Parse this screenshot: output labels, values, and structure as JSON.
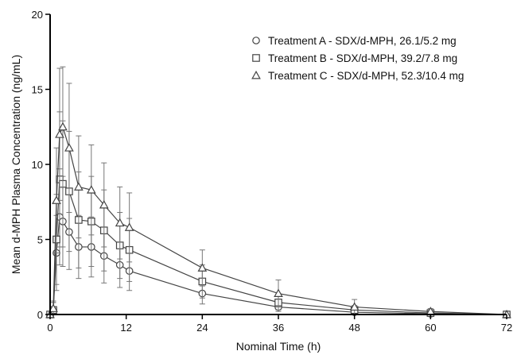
{
  "chart_data": {
    "type": "line",
    "xlabel": "Nominal Time (h)",
    "ylabel": "Mean d-MPH Plasma Concentration (ng/mL)",
    "xlim": [
      0,
      72
    ],
    "ylim": [
      0,
      20
    ],
    "x_ticks": [
      "0",
      "12",
      "24",
      "36",
      "48",
      "60",
      "72"
    ],
    "y_ticks": [
      "0",
      "5",
      "10",
      "15",
      "20"
    ],
    "legend_position": "top-right",
    "x": [
      0,
      0.5,
      1,
      1.5,
      2,
      3,
      4.5,
      6.5,
      8.5,
      11,
      12.5,
      24,
      36,
      48,
      60,
      72
    ],
    "series": [
      {
        "name": "Treatment A - SDX/d-MPH, 26.1/5.2 mg",
        "marker": "circle",
        "values": [
          0,
          0.3,
          4.1,
          6.5,
          6.2,
          5.5,
          4.5,
          4.5,
          3.9,
          3.3,
          2.9,
          1.4,
          0.5,
          0.15,
          0.05,
          0
        ],
        "sd": [
          0,
          0.5,
          2.5,
          3.2,
          3.0,
          2.5,
          2.1,
          2.0,
          1.8,
          1.5,
          1.3,
          0.7,
          0.3,
          0.15,
          0.05,
          0
        ]
      },
      {
        "name": "Treatment B - SDX/d-MPH, 39.2/7.8 mg",
        "marker": "square",
        "values": [
          0,
          0.3,
          5.0,
          9.0,
          8.7,
          8.2,
          6.3,
          6.2,
          5.6,
          4.6,
          4.3,
          2.2,
          0.8,
          0.3,
          0.1,
          0
        ],
        "sd": [
          0,
          0.5,
          3.0,
          4.5,
          4.2,
          4.0,
          3.2,
          3.0,
          2.7,
          2.2,
          2.1,
          1.1,
          0.5,
          0.3,
          0.1,
          0
        ]
      },
      {
        "name": "Treatment C - SDX/d-MPH, 52.3/10.4 mg",
        "marker": "triangle",
        "values": [
          0,
          0.4,
          7.6,
          12.0,
          12.5,
          11.1,
          8.5,
          8.3,
          7.3,
          6.1,
          5.8,
          3.1,
          1.4,
          0.5,
          0.2,
          0
        ],
        "sd": [
          0,
          0.5,
          3.5,
          4.4,
          4.0,
          4.3,
          3.4,
          3.0,
          2.8,
          2.4,
          2.3,
          1.2,
          0.9,
          0.5,
          0.2,
          0
        ]
      }
    ]
  }
}
